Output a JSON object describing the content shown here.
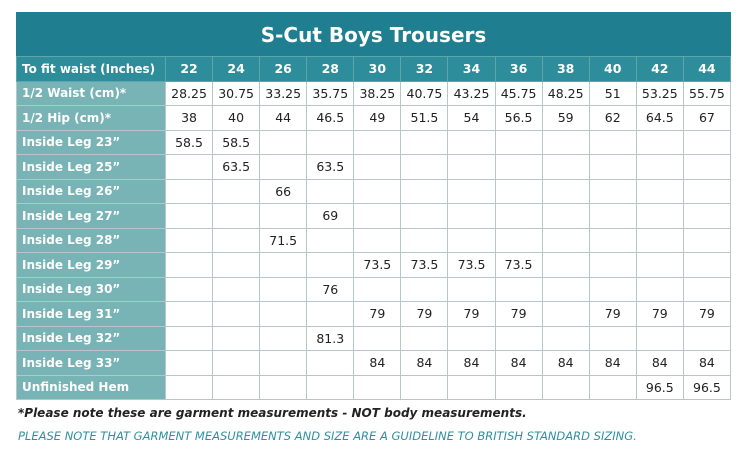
{
  "title": "S-Cut Boys Trousers",
  "table": {
    "header": [
      "To fit waist (Inches)",
      "22",
      "24",
      "26",
      "28",
      "30",
      "32",
      "34",
      "36",
      "38",
      "40",
      "42",
      "44"
    ],
    "rows": [
      [
        "1/2 Waist (cm)*",
        "28.25",
        "30.75",
        "33.25",
        "35.75",
        "38.25",
        "40.75",
        "43.25",
        "45.75",
        "48.25",
        "51",
        "53.25",
        "55.75"
      ],
      [
        "1/2 Hip (cm)*",
        "38",
        "40",
        "44",
        "46.5",
        "49",
        "51.5",
        "54",
        "56.5",
        "59",
        "62",
        "64.5",
        "67"
      ],
      [
        "Inside Leg 23”",
        "58.5",
        "58.5",
        null,
        null,
        null,
        null,
        null,
        null,
        null,
        null,
        null,
        null
      ],
      [
        "Inside Leg 25”",
        null,
        "63.5",
        null,
        "63.5",
        null,
        null,
        null,
        null,
        null,
        null,
        null,
        null
      ],
      [
        "Inside Leg 26”",
        null,
        null,
        "66",
        null,
        null,
        null,
        null,
        null,
        null,
        null,
        null,
        null
      ],
      [
        "Inside Leg 27”",
        null,
        null,
        null,
        "69",
        null,
        null,
        null,
        null,
        null,
        null,
        null,
        null
      ],
      [
        "Inside Leg 28”",
        null,
        null,
        "71.5",
        null,
        null,
        null,
        null,
        null,
        null,
        null,
        null,
        null
      ],
      [
        "Inside Leg 29”",
        null,
        null,
        null,
        null,
        "73.5",
        "73.5",
        "73.5",
        "73.5",
        null,
        null,
        null,
        null
      ],
      [
        "Inside Leg 30”",
        null,
        null,
        null,
        "76",
        null,
        null,
        null,
        null,
        null,
        null,
        null,
        null
      ],
      [
        "Inside Leg 31”",
        null,
        null,
        null,
        null,
        "79",
        "79",
        "79",
        "79",
        null,
        "79",
        "79",
        "79"
      ],
      [
        "Inside Leg 32”",
        null,
        null,
        null,
        "81.3",
        null,
        null,
        null,
        null,
        null,
        null,
        null,
        null
      ],
      [
        "Inside Leg 33”",
        null,
        null,
        null,
        null,
        "84",
        "84",
        "84",
        "84",
        "84",
        "84",
        "84",
        "84"
      ],
      [
        "Unfinished Hem",
        null,
        null,
        null,
        null,
        null,
        null,
        null,
        null,
        null,
        null,
        "96.5",
        "96.5"
      ]
    ]
  },
  "notes": [
    "*Please note these are garment measurements - NOT body measurements.",
    "PLEASE NOTE THAT GARMENT MEASUREMENTS AND SIZE ARE A GUIDELINE TO BRITISH STANDARD SIZING."
  ]
}
